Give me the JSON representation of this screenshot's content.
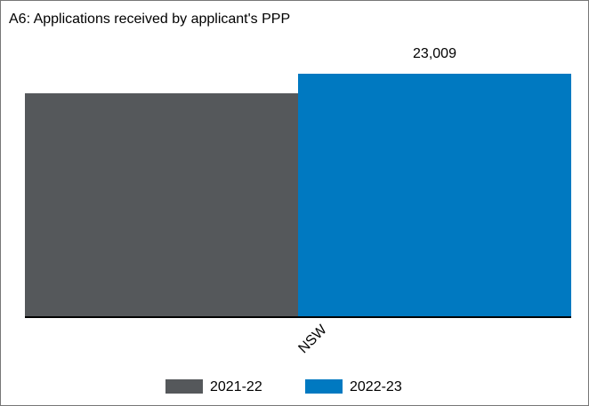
{
  "chart_data": {
    "type": "bar",
    "title": "A6: Applications received by applicant's PPP",
    "categories": [
      "NSW"
    ],
    "series": [
      {
        "name": "2021-22",
        "color": "#55585b",
        "values": [
          21160
        ]
      },
      {
        "name": "2022-23",
        "color": "#0079c1",
        "values": [
          23009
        ],
        "value_labels": [
          "23,009"
        ]
      }
    ]
  }
}
